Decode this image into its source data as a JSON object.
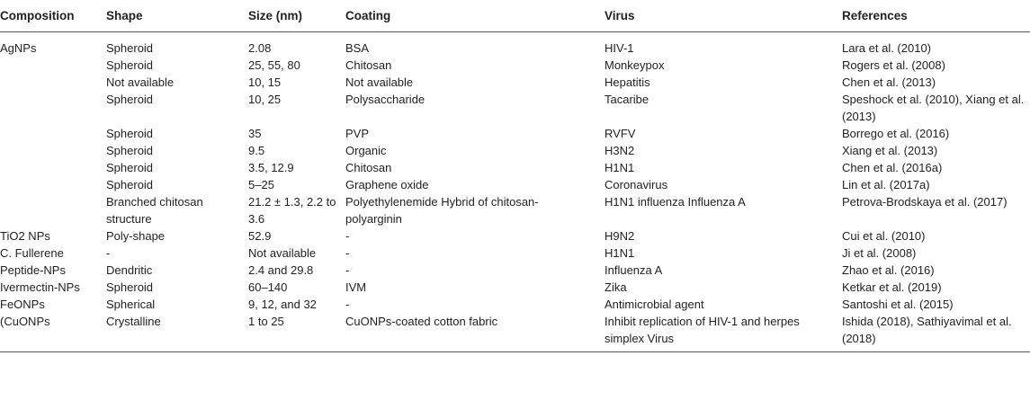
{
  "headers": [
    "Composition",
    "Shape",
    "Size (nm)",
    "Coating",
    "Virus",
    "References"
  ],
  "rows": [
    {
      "composition": "AgNPs",
      "shape": "Spheroid",
      "size": "2.08",
      "coating": "BSA",
      "virus": "HIV-1",
      "references": "Lara et al. (2010)"
    },
    {
      "composition": "",
      "shape": "Spheroid",
      "size": "25, 55, 80",
      "coating": "Chitosan",
      "virus": "Monkeypox",
      "references": "Rogers et al. (2008)"
    },
    {
      "composition": "",
      "shape": "Not available",
      "size": "10, 15",
      "coating": "Not available",
      "virus": "Hepatitis",
      "references": "Chen et al. (2013)"
    },
    {
      "composition": "",
      "shape": "Spheroid",
      "size": "10, 25",
      "coating": "Polysaccharide",
      "virus": "Tacaribe",
      "references": "Speshock et al. (2010), Xiang et al. (2013)"
    },
    {
      "composition": "",
      "shape": "Spheroid",
      "size": "35",
      "coating": "PVP",
      "virus": "RVFV",
      "references": "Borrego et al. (2016)"
    },
    {
      "composition": "",
      "shape": "Spheroid",
      "size": "9.5",
      "coating": "Organic",
      "virus": "H3N2",
      "references": "Xiang et al. (2013)"
    },
    {
      "composition": "",
      "shape": "Spheroid",
      "size": "3.5, 12.9",
      "coating": "Chitosan",
      "virus": "H1N1",
      "references": "Chen et al. (2016a)"
    },
    {
      "composition": "",
      "shape": "Spheroid",
      "size": "5–25",
      "coating": "Graphene oxide",
      "virus": "Coronavirus",
      "references": "Lin et al. (2017a)"
    },
    {
      "composition": "",
      "shape": "Branched chitosan structure",
      "size": "21.2 ± 1.3, 2.2 to 3.6",
      "coating": "Polyethylenemide Hybrid of chitosan-polyarginin",
      "virus": "H1N1 influenza Influenza A",
      "references": "Petrova-Brodskaya et al. (2017)"
    },
    {
      "composition": "TiO2 NPs",
      "shape": "Poly-shape",
      "size": "52.9",
      "coating": "-",
      "virus": "H9N2",
      "references": "Cui et al. (2010)"
    },
    {
      "composition": "C. Fullerene",
      "shape": "-",
      "size": "Not available",
      "coating": "-",
      "virus": "H1N1",
      "references": "Ji et al. (2008)"
    },
    {
      "composition": "Peptide-NPs",
      "shape": "Dendritic",
      "size": "2.4 and 29.8",
      "coating": "-",
      "virus": "Influenza A",
      "references": "Zhao et al. (2016)"
    },
    {
      "composition": "Ivermectin-NPs",
      "shape": "Spheroid",
      "size": "60–140",
      "coating": "IVM",
      "virus": "Zika",
      "references": "Ketkar et al. (2019)"
    },
    {
      "composition": "FeONPs",
      "shape": "Spherical",
      "size": "9, 12, and 32",
      "coating": "-",
      "virus": "Antimicrobial agent",
      "references": "Santoshi et al. (2015)"
    },
    {
      "composition": "(CuONPs",
      "shape": "Crystalline",
      "size": "1 to 25",
      "coating": "CuONPs-coated cotton fabric",
      "virus": "Inhibit replication of HIV-1 and herpes simplex Virus",
      "references": "Ishida (2018), Sathiyavimal et al. (2018)"
    }
  ]
}
